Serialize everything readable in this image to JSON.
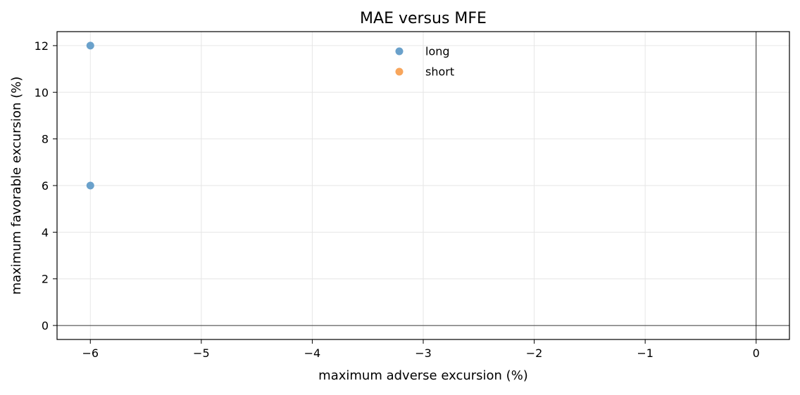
{
  "chart_data": {
    "type": "scatter",
    "title": "MAE versus MFE",
    "xlabel": "maximum adverse excursion (%)",
    "ylabel": "maximum favorable excursion (%)",
    "xlim": [
      -6.3,
      0.3
    ],
    "ylim": [
      -0.6,
      12.6
    ],
    "xticks": [
      -6,
      -5,
      -4,
      -3,
      -2,
      -1,
      0
    ],
    "xtick_labels": [
      "−6",
      "−5",
      "−4",
      "−3",
      "−2",
      "−1",
      "0"
    ],
    "yticks": [
      0,
      2,
      4,
      6,
      8,
      10,
      12
    ],
    "ytick_labels": [
      "0",
      "2",
      "4",
      "6",
      "8",
      "10",
      "12"
    ],
    "grid": true,
    "reference_lines": {
      "x": 0,
      "y": 0
    },
    "legend_position": "upper-center",
    "series": [
      {
        "name": "long",
        "color": "#6aa1cb",
        "points": [
          {
            "x": -6,
            "y": 12
          },
          {
            "x": -6,
            "y": 6
          }
        ]
      },
      {
        "name": "short",
        "color": "#f8a65c",
        "points": []
      }
    ]
  }
}
